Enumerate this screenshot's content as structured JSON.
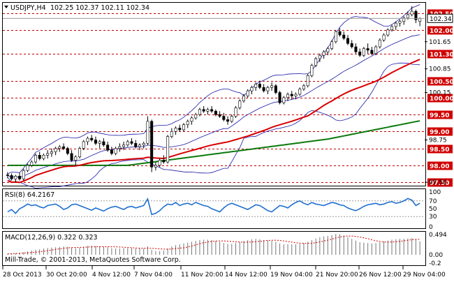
{
  "chart_data": {
    "type": "candlestick",
    "symbol_timeframe": "USDJPY,H4",
    "ohlc_header": "102.25 102.37 102.11 102.34",
    "copyright": "Mill-Trade, © 2001-2013, MetaQuotes Software Corp.",
    "main_ylim": [
      97.4,
      102.8
    ],
    "price_ticks": [
      "101.65",
      "100.85",
      "100.15",
      "98.75",
      "97.50"
    ],
    "level_lines": [
      "102.50",
      "102.00",
      "101.30",
      "100.50",
      "100.00",
      "99.50",
      "99.00",
      "98.50",
      "98.00",
      "97.50"
    ],
    "current_price": "102.34",
    "x_labels": [
      "28 Oct 2013",
      "30 Oct 20:00",
      "4 Nov 12:00",
      "7 Nov 04:00",
      "11 Nov 20:00",
      "14 Nov 12:00",
      "19 Nov 04:00",
      "21 Nov 20:00",
      "26 Nov 12:00",
      "29 Nov 04:00"
    ],
    "candles": [
      [
        97.72,
        97.8,
        97.62,
        97.7
      ],
      [
        97.7,
        97.76,
        97.55,
        97.6
      ],
      [
        97.6,
        97.72,
        97.5,
        97.68
      ],
      [
        97.68,
        97.78,
        97.55,
        97.6
      ],
      [
        97.6,
        97.9,
        97.55,
        97.85
      ],
      [
        97.85,
        98.05,
        97.8,
        98.0
      ],
      [
        98.0,
        98.15,
        97.95,
        98.1
      ],
      [
        98.1,
        98.35,
        98.05,
        98.3
      ],
      [
        98.3,
        98.4,
        98.15,
        98.2
      ],
      [
        98.2,
        98.35,
        98.15,
        98.3
      ],
      [
        98.3,
        98.45,
        98.2,
        98.35
      ],
      [
        98.35,
        98.5,
        98.25,
        98.4
      ],
      [
        98.4,
        98.55,
        98.3,
        98.5
      ],
      [
        98.5,
        98.6,
        98.4,
        98.55
      ],
      [
        98.55,
        98.65,
        98.45,
        98.5
      ],
      [
        98.5,
        98.55,
        98.3,
        98.35
      ],
      [
        98.35,
        98.45,
        98.1,
        98.15
      ],
      [
        98.15,
        98.3,
        98.0,
        98.25
      ],
      [
        98.25,
        98.55,
        98.2,
        98.5
      ],
      [
        98.5,
        98.75,
        98.45,
        98.7
      ],
      [
        98.7,
        98.85,
        98.6,
        98.8
      ],
      [
        98.8,
        98.9,
        98.7,
        98.75
      ],
      [
        98.75,
        98.85,
        98.6,
        98.65
      ],
      [
        98.65,
        98.75,
        98.5,
        98.7
      ],
      [
        98.7,
        98.8,
        98.55,
        98.6
      ],
      [
        98.6,
        98.7,
        98.4,
        98.45
      ],
      [
        98.45,
        98.55,
        98.3,
        98.35
      ],
      [
        98.35,
        98.55,
        98.3,
        98.5
      ],
      [
        98.5,
        98.65,
        98.4,
        98.55
      ],
      [
        98.55,
        98.7,
        98.45,
        98.6
      ],
      [
        98.6,
        98.75,
        98.55,
        98.7
      ],
      [
        98.7,
        98.8,
        98.6,
        98.65
      ],
      [
        98.65,
        98.75,
        98.5,
        98.55
      ],
      [
        98.55,
        98.65,
        98.45,
        98.6
      ],
      [
        98.6,
        98.7,
        98.5,
        98.65
      ],
      [
        98.65,
        99.45,
        98.6,
        99.3
      ],
      [
        99.3,
        99.35,
        97.8,
        97.95
      ],
      [
        97.95,
        98.1,
        97.85,
        98.0
      ],
      [
        98.0,
        98.2,
        97.95,
        98.15
      ],
      [
        98.15,
        98.3,
        98.05,
        98.1
      ],
      [
        98.1,
        98.9,
        98.05,
        98.85
      ],
      [
        98.85,
        99.1,
        98.8,
        99.0
      ],
      [
        99.0,
        99.15,
        98.9,
        99.1
      ],
      [
        99.1,
        99.2,
        99.0,
        99.05
      ],
      [
        99.05,
        99.25,
        99.0,
        99.2
      ],
      [
        99.2,
        99.35,
        99.1,
        99.3
      ],
      [
        99.3,
        99.45,
        99.2,
        99.4
      ],
      [
        99.4,
        99.55,
        99.35,
        99.5
      ],
      [
        99.5,
        99.7,
        99.45,
        99.65
      ],
      [
        99.65,
        99.75,
        99.55,
        99.6
      ],
      [
        99.6,
        99.7,
        99.5,
        99.65
      ],
      [
        99.65,
        99.75,
        99.55,
        99.6
      ],
      [
        99.6,
        99.65,
        99.45,
        99.5
      ],
      [
        99.5,
        99.6,
        99.4,
        99.45
      ],
      [
        99.45,
        99.55,
        99.3,
        99.35
      ],
      [
        99.35,
        99.45,
        99.2,
        99.3
      ],
      [
        99.3,
        99.5,
        99.25,
        99.45
      ],
      [
        99.45,
        99.75,
        99.4,
        99.7
      ],
      [
        99.7,
        99.95,
        99.65,
        99.9
      ],
      [
        99.9,
        100.1,
        99.85,
        100.05
      ],
      [
        100.05,
        100.25,
        100.0,
        100.2
      ],
      [
        100.2,
        100.35,
        100.1,
        100.3
      ],
      [
        100.3,
        100.45,
        100.2,
        100.4
      ],
      [
        100.4,
        100.5,
        100.25,
        100.3
      ],
      [
        100.3,
        100.4,
        100.15,
        100.2
      ],
      [
        100.2,
        100.35,
        100.1,
        100.3
      ],
      [
        100.3,
        100.45,
        100.2,
        100.35
      ],
      [
        100.35,
        100.4,
        100.1,
        100.15
      ],
      [
        100.15,
        100.2,
        99.8,
        99.85
      ],
      [
        99.85,
        100.05,
        99.8,
        100.0
      ],
      [
        100.0,
        100.15,
        99.9,
        100.1
      ],
      [
        100.1,
        100.2,
        99.95,
        100.05
      ],
      [
        100.05,
        100.15,
        99.95,
        100.1
      ],
      [
        100.1,
        100.3,
        100.05,
        100.25
      ],
      [
        100.25,
        100.4,
        100.2,
        100.35
      ],
      [
        100.35,
        100.7,
        100.3,
        100.65
      ],
      [
        100.65,
        101.0,
        100.6,
        100.95
      ],
      [
        100.95,
        101.2,
        100.9,
        101.15
      ],
      [
        101.15,
        101.3,
        101.05,
        101.25
      ],
      [
        101.25,
        101.4,
        101.15,
        101.35
      ],
      [
        101.35,
        101.5,
        101.25,
        101.45
      ],
      [
        101.45,
        101.7,
        101.4,
        101.65
      ],
      [
        101.65,
        102.0,
        101.6,
        101.95
      ],
      [
        101.95,
        102.05,
        101.8,
        101.85
      ],
      [
        101.85,
        101.95,
        101.7,
        101.75
      ],
      [
        101.75,
        101.85,
        101.55,
        101.6
      ],
      [
        101.6,
        101.7,
        101.45,
        101.5
      ],
      [
        101.5,
        101.6,
        101.3,
        101.35
      ],
      [
        101.35,
        101.45,
        101.2,
        101.25
      ],
      [
        101.25,
        101.5,
        101.2,
        101.45
      ],
      [
        101.45,
        101.6,
        101.3,
        101.4
      ],
      [
        101.4,
        101.5,
        101.25,
        101.3
      ],
      [
        101.3,
        101.55,
        101.25,
        101.5
      ],
      [
        101.5,
        101.75,
        101.45,
        101.7
      ],
      [
        101.7,
        101.9,
        101.65,
        101.85
      ],
      [
        101.85,
        102.05,
        101.8,
        102.0
      ],
      [
        102.0,
        102.15,
        101.95,
        102.1
      ],
      [
        102.1,
        102.25,
        102.0,
        102.2
      ],
      [
        102.2,
        102.3,
        102.1,
        102.25
      ],
      [
        102.25,
        102.4,
        102.15,
        102.35
      ],
      [
        102.35,
        102.55,
        102.3,
        102.45
      ],
      [
        102.45,
        102.7,
        102.4,
        102.55
      ],
      [
        102.55,
        102.6,
        102.2,
        102.3
      ],
      [
        102.25,
        102.37,
        102.11,
        102.34
      ]
    ],
    "rsi": {
      "label": "RSI(8) 64.2167",
      "ylim": [
        0,
        100
      ],
      "ticks": [
        "100",
        "70",
        "50",
        "30",
        "0"
      ],
      "values": [
        42,
        48,
        38,
        50,
        55,
        62,
        58,
        60,
        55,
        52,
        58,
        60,
        62,
        56,
        48,
        52,
        60,
        62,
        58,
        54,
        50,
        46,
        52,
        48,
        44,
        50,
        54,
        56,
        52,
        48,
        54,
        56,
        52,
        55,
        58,
        75,
        35,
        38,
        45,
        55,
        62,
        60,
        66,
        58,
        62,
        64,
        60,
        66,
        62,
        58,
        56,
        50,
        46,
        42,
        52,
        60,
        64,
        60,
        56,
        52,
        48,
        54,
        60,
        58,
        52,
        45,
        42,
        50,
        58,
        56,
        52,
        60,
        66,
        70,
        64,
        60,
        66,
        62,
        60,
        58,
        62,
        66,
        64,
        60,
        58,
        52,
        48,
        45,
        50,
        56,
        60,
        62,
        64,
        60,
        62,
        66,
        68,
        64,
        66,
        70,
        76,
        72,
        58,
        64
      ]
    },
    "macd": {
      "label": "MACD(12,26,9) 0.322 0.323",
      "ylim": [
        -0.25,
        0.55
      ],
      "ticks": [
        "0.494",
        "0.00",
        "-0.2"
      ],
      "histogram": [
        0.02,
        0.03,
        0.04,
        0.05,
        0.06,
        0.08,
        0.1,
        0.12,
        0.13,
        0.15,
        0.16,
        0.17,
        0.18,
        0.19,
        0.2,
        0.19,
        0.17,
        0.16,
        0.17,
        0.19,
        0.21,
        0.22,
        0.21,
        0.2,
        0.19,
        0.18,
        0.16,
        0.15,
        0.15,
        0.16,
        0.16,
        0.16,
        0.15,
        0.15,
        0.15,
        0.2,
        0.12,
        0.09,
        0.09,
        0.1,
        0.15,
        0.2,
        0.23,
        0.25,
        0.27,
        0.29,
        0.31,
        0.33,
        0.35,
        0.36,
        0.36,
        0.35,
        0.33,
        0.31,
        0.28,
        0.26,
        0.26,
        0.28,
        0.3,
        0.33,
        0.35,
        0.37,
        0.38,
        0.37,
        0.35,
        0.34,
        0.33,
        0.31,
        0.27,
        0.25,
        0.25,
        0.25,
        0.25,
        0.26,
        0.28,
        0.31,
        0.35,
        0.39,
        0.42,
        0.44,
        0.45,
        0.47,
        0.5,
        0.49,
        0.46,
        0.42,
        0.38,
        0.34,
        0.3,
        0.29,
        0.28,
        0.27,
        0.28,
        0.3,
        0.32,
        0.34,
        0.36,
        0.37,
        0.38,
        0.38,
        0.39,
        0.4,
        0.37,
        0.32
      ]
    }
  }
}
